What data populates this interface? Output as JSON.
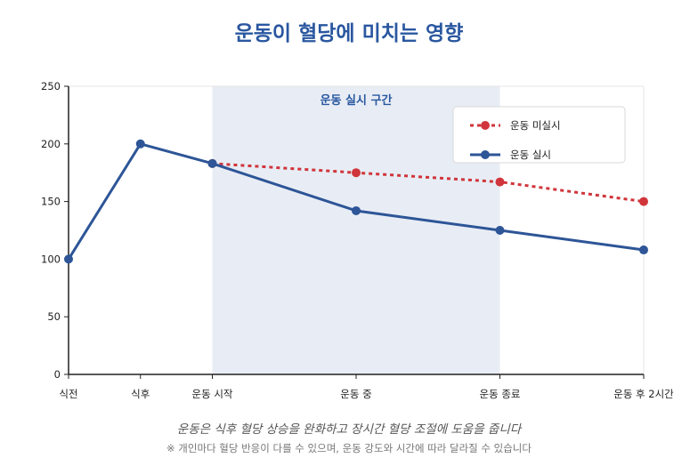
{
  "title": "운동이 혈당에 미치는 영향",
  "caption": "운동은 식후 혈당 상승을 완화하고 장시간 혈당 조절에 도움을 줍니다",
  "note": "※ 개인마다 혈당 반응이 다를 수 있으며, 운동 강도와 시간에 따라 달라질 수 있습니다",
  "chart_data": {
    "type": "line",
    "title": "운동이 혈당에 미치는 영향",
    "categories": [
      "식전",
      "식후",
      "운동 시작",
      "운동 중",
      "운동 종료",
      "운동 후 2시간"
    ],
    "x_positions": [
      0,
      1,
      2,
      4,
      6,
      8
    ],
    "ylim": [
      0,
      250
    ],
    "yticks": [
      0,
      50,
      100,
      150,
      200,
      250
    ],
    "grid": false,
    "legend_position": "top-right",
    "shaded_region": {
      "label": "운동 실시 구간",
      "from": "운동 시작",
      "to": "운동 종료",
      "color": "#e8edf5"
    },
    "series": [
      {
        "name": "운동 미실시",
        "color": "#d0353b",
        "style": "dotted",
        "x": [
          2,
          4,
          6,
          8
        ],
        "values": [
          183,
          175,
          167,
          150
        ]
      },
      {
        "name": "운동 실시",
        "color": "#2d5597",
        "style": "solid",
        "x": [
          0,
          1,
          2,
          4,
          6,
          8
        ],
        "values": [
          100,
          200,
          183,
          142,
          125,
          108
        ]
      }
    ]
  }
}
